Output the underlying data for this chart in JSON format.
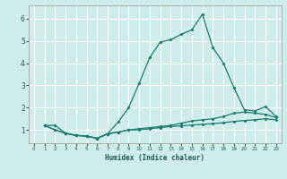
{
  "title": "",
  "xlabel": "Humidex (Indice chaleur)",
  "xlim": [
    -0.5,
    23.5
  ],
  "ylim": [
    0.4,
    6.6
  ],
  "xticks": [
    0,
    1,
    2,
    3,
    4,
    5,
    6,
    7,
    8,
    9,
    10,
    11,
    12,
    13,
    14,
    15,
    16,
    17,
    18,
    19,
    20,
    21,
    22,
    23
  ],
  "yticks": [
    1,
    2,
    3,
    4,
    5,
    6
  ],
  "bg_color": "#ceecea",
  "grid_color": "#ffffff",
  "line_color": "#1a7a6e",
  "line1_x": [
    1,
    2,
    3,
    4,
    5,
    6,
    7,
    8,
    9,
    10,
    11,
    12,
    13,
    14,
    15,
    16,
    17,
    18,
    19,
    20,
    21,
    22,
    23
  ],
  "line1_y": [
    1.2,
    1.2,
    0.85,
    0.75,
    0.72,
    0.62,
    0.82,
    1.35,
    2.0,
    3.1,
    4.25,
    4.95,
    5.05,
    5.3,
    5.5,
    6.2,
    4.7,
    4.0,
    2.9,
    1.9,
    1.85,
    2.05,
    1.6
  ],
  "line2_x": [
    1,
    2,
    3,
    4,
    5,
    6,
    7,
    8,
    9,
    10,
    11,
    12,
    13,
    14,
    15,
    16,
    17,
    18,
    19,
    20,
    21,
    22,
    23
  ],
  "line2_y": [
    1.2,
    1.0,
    0.85,
    0.75,
    0.72,
    0.62,
    0.82,
    0.9,
    1.0,
    1.05,
    1.1,
    1.15,
    1.2,
    1.3,
    1.4,
    1.45,
    1.5,
    1.6,
    1.75,
    1.8,
    1.75,
    1.7,
    1.55
  ],
  "line3_x": [
    1,
    2,
    3,
    4,
    5,
    6,
    7,
    8,
    9,
    10,
    11,
    12,
    13,
    14,
    15,
    16,
    17,
    18,
    19,
    20,
    21,
    22,
    23
  ],
  "line3_y": [
    1.2,
    1.0,
    0.85,
    0.75,
    0.72,
    0.62,
    0.82,
    0.9,
    1.0,
    1.0,
    1.05,
    1.1,
    1.15,
    1.18,
    1.22,
    1.25,
    1.28,
    1.32,
    1.38,
    1.42,
    1.45,
    1.5,
    1.45
  ]
}
